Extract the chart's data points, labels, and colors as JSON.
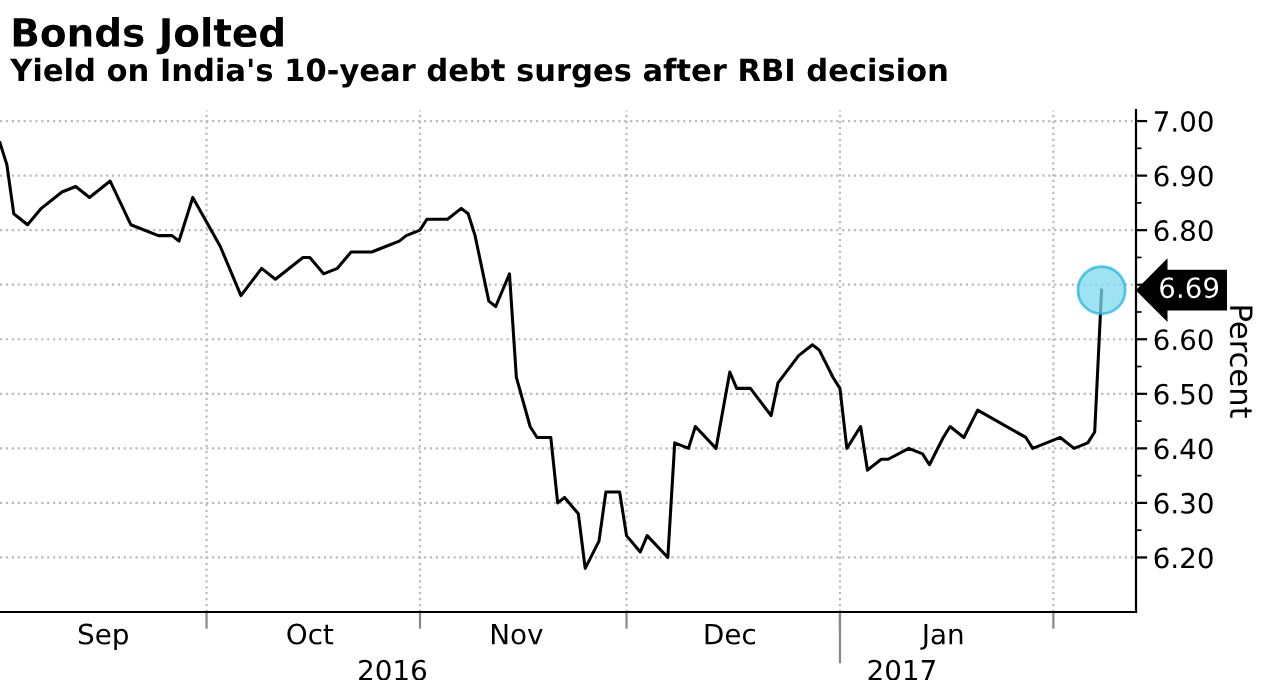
{
  "chart_data": {
    "type": "line",
    "title": "Bonds Jolted",
    "subtitle": "Yield on India's 10-year debt surges after RBI decision",
    "ylabel": "Percent",
    "x": [
      "2016-09-01",
      "2016-09-02",
      "2016-09-03",
      "2016-09-05",
      "2016-09-07",
      "2016-09-10",
      "2016-09-12",
      "2016-09-14",
      "2016-09-17",
      "2016-09-20",
      "2016-09-24",
      "2016-09-26",
      "2016-09-27",
      "2016-09-29",
      "2016-10-03",
      "2016-10-06",
      "2016-10-09",
      "2016-10-11",
      "2016-10-15",
      "2016-10-16",
      "2016-10-18",
      "2016-10-20",
      "2016-10-22",
      "2016-10-25",
      "2016-10-27",
      "2016-10-29",
      "2016-10-30",
      "2016-11-01",
      "2016-11-02",
      "2016-11-04",
      "2016-11-05",
      "2016-11-07",
      "2016-11-08",
      "2016-11-09",
      "2016-11-11",
      "2016-11-12",
      "2016-11-14",
      "2016-11-15",
      "2016-11-17",
      "2016-11-18",
      "2016-11-20",
      "2016-11-21",
      "2016-11-22",
      "2016-11-24",
      "2016-11-25",
      "2016-11-27",
      "2016-11-28",
      "2016-11-30",
      "2016-12-01",
      "2016-12-03",
      "2016-12-04",
      "2016-12-07",
      "2016-12-08",
      "2016-12-10",
      "2016-12-11",
      "2016-12-14",
      "2016-12-16",
      "2016-12-17",
      "2016-12-19",
      "2016-12-22",
      "2016-12-23",
      "2016-12-26",
      "2016-12-28",
      "2016-12-29",
      "2016-12-31",
      "2017-01-01",
      "2017-01-02",
      "2017-01-04",
      "2017-01-05",
      "2017-01-07",
      "2017-01-08",
      "2017-01-11",
      "2017-01-13",
      "2017-01-14",
      "2017-01-16",
      "2017-01-17",
      "2017-01-19",
      "2017-01-21",
      "2017-01-28",
      "2017-01-29",
      "2017-01-31",
      "2017-02-02",
      "2017-02-04",
      "2017-02-06",
      "2017-02-07",
      "2017-02-08"
    ],
    "series": [
      {
        "color": "#000000",
        "values": [
          6.96,
          6.92,
          6.83,
          6.81,
          6.84,
          6.87,
          6.88,
          6.86,
          6.89,
          6.81,
          6.79,
          6.79,
          6.78,
          6.86,
          6.77,
          6.68,
          6.73,
          6.71,
          6.75,
          6.75,
          6.72,
          6.73,
          6.76,
          6.76,
          6.77,
          6.78,
          6.79,
          6.8,
          6.82,
          6.82,
          6.82,
          6.84,
          6.83,
          6.79,
          6.67,
          6.66,
          6.72,
          6.53,
          6.44,
          6.42,
          6.42,
          6.3,
          6.31,
          6.28,
          6.18,
          6.23,
          6.32,
          6.32,
          6.24,
          6.21,
          6.24,
          6.2,
          6.41,
          6.4,
          6.44,
          6.4,
          6.54,
          6.51,
          6.51,
          6.46,
          6.52,
          6.57,
          6.59,
          6.58,
          6.53,
          6.51,
          6.4,
          6.44,
          6.36,
          6.38,
          6.38,
          6.4,
          6.39,
          6.37,
          6.42,
          6.44,
          6.42,
          6.47,
          6.42,
          6.4,
          6.41,
          6.42,
          6.4,
          6.41,
          6.43,
          6.69
        ]
      }
    ],
    "xlim": [
      "2016-09-01",
      "2017-02-13"
    ],
    "xticks": [
      {
        "value": "2016-09-16",
        "label": "Sep"
      },
      {
        "value": "2016-10-01",
        "label": null
      },
      {
        "value": "2016-10-16",
        "label": "Oct"
      },
      {
        "value": "2016-11-01",
        "label": null
      },
      {
        "value": "2016-11-15",
        "label": "Nov"
      },
      {
        "value": "2016-12-01",
        "label": null
      },
      {
        "value": "2016-12-16",
        "label": "Dec"
      },
      {
        "value": "2017-01-01",
        "label": null
      },
      {
        "value": "2017-01-16",
        "label": "Jan"
      },
      {
        "value": "2017-02-01",
        "label": null
      }
    ],
    "ylim": [
      6.1,
      7.02
    ],
    "yticks": [
      {
        "value": 6.2,
        "label": "6.20"
      },
      {
        "value": 6.3,
        "label": "6.30"
      },
      {
        "value": 6.4,
        "label": "6.40"
      },
      {
        "value": 6.5,
        "label": "6.50"
      },
      {
        "value": 6.6,
        "label": "6.60"
      },
      {
        "value": 6.7,
        "label": null
      },
      {
        "value": 6.8,
        "label": "6.80"
      },
      {
        "value": 6.9,
        "label": "6.90"
      },
      {
        "value": 7.0,
        "label": "7.00"
      }
    ],
    "x2lim": [
      "2016-09-01",
      "2017-02-13"
    ],
    "x2ticks": [
      {
        "value": "2016-10-28",
        "label": "2016"
      },
      {
        "value": "2017-01-10",
        "label": "2017"
      }
    ],
    "annotations": [
      {
        "text": "6.69",
        "x": "2017-02-08",
        "y": 6.69
      }
    ],
    "grid": true,
    "legend": false,
    "marker": "none",
    "line_style": "solid"
  }
}
